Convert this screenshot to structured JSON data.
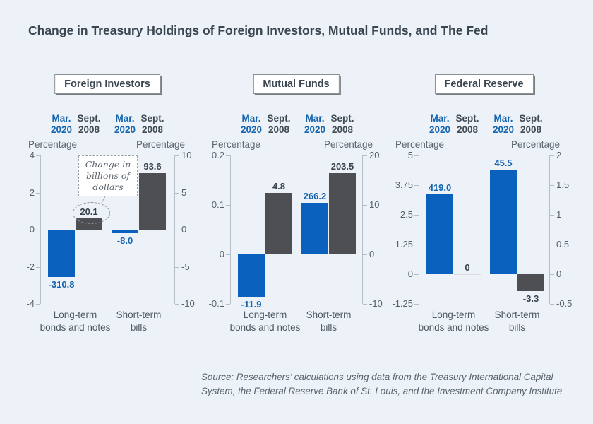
{
  "title": "Change in Treasury Holdings of Foreign Investors, Mutual Funds, and The Fed",
  "colors": {
    "background": "#edf2f9",
    "bar_blue": "#0a62be",
    "bar_dark": "#4d4f53",
    "label_blue": "#1464ae",
    "label_dark": "#39434b"
  },
  "source": {
    "line1": "Source: Researchers’ calculations using data from the Treasury International Capital",
    "line2": "System, the Federal Reserve Bank of St. Louis, and the Investment Company Institute"
  },
  "chart_data": [
    {
      "type": "bar",
      "title": "Foreign Investors",
      "categories": [
        [
          "Long-term",
          "bonds and notes"
        ],
        [
          "Short-term",
          "bills"
        ]
      ],
      "series_labels": [
        [
          "Mar.",
          "2020"
        ],
        [
          "Sept.",
          "2008"
        ]
      ],
      "left_axis": {
        "label": "Percentage",
        "min": -4,
        "max": 4,
        "ticks": [
          4,
          2,
          0,
          -2,
          -4
        ]
      },
      "right_axis": {
        "label": "Percentage",
        "min": -10,
        "max": 10,
        "ticks": [
          10,
          5,
          0,
          -5,
          -10
        ]
      },
      "bars": [
        {
          "group": 0,
          "series": 0,
          "axis": "left",
          "value": -2.55,
          "label": "-310.8",
          "pos": "below"
        },
        {
          "group": 0,
          "series": 1,
          "axis": "right",
          "value": 1.5,
          "label": "20.1",
          "pos": "above",
          "circled": true
        },
        {
          "group": 1,
          "series": 0,
          "axis": "left",
          "value": -0.18,
          "label": "-8.0",
          "pos": "below"
        },
        {
          "group": 1,
          "series": 1,
          "axis": "right",
          "value": 7.6,
          "label": "93.6",
          "pos": "above"
        }
      ],
      "annotation": {
        "lines": [
          "Change in",
          "billions of",
          "dollars"
        ]
      },
      "bar_labels_unit": "billions of dollars"
    },
    {
      "type": "bar",
      "title": "Mutual Funds",
      "categories": [
        [
          "Long-term",
          "bonds and notes"
        ],
        [
          "Short-term",
          "bills"
        ]
      ],
      "series_labels": [
        [
          "Mar.",
          "2020"
        ],
        [
          "Sept.",
          "2008"
        ]
      ],
      "left_axis": {
        "label": "Percentage",
        "min": -0.1,
        "max": 0.2,
        "ticks": [
          0.2,
          0.1,
          0,
          -0.1
        ]
      },
      "right_axis": {
        "label": "Percentage",
        "min": -10,
        "max": 20,
        "ticks": [
          20,
          10,
          0,
          -10
        ]
      },
      "bars": [
        {
          "group": 0,
          "series": 0,
          "axis": "left",
          "value": -0.085,
          "label": "-11.9",
          "pos": "below"
        },
        {
          "group": 0,
          "series": 1,
          "axis": "right",
          "value": 12.4,
          "label": "4.8",
          "pos": "above"
        },
        {
          "group": 1,
          "series": 0,
          "axis": "left",
          "value": 0.104,
          "label": "266.2",
          "pos": "above"
        },
        {
          "group": 1,
          "series": 1,
          "axis": "right",
          "value": 16.4,
          "label": "203.5",
          "pos": "above"
        }
      ],
      "bar_labels_unit": "billions of dollars"
    },
    {
      "type": "bar",
      "title": "Federal Reserve",
      "categories": [
        [
          "Long-term",
          "bonds and notes"
        ],
        [
          "Short-term",
          "bills"
        ]
      ],
      "series_labels": [
        [
          "Mar.",
          "2020"
        ],
        [
          "Sept.",
          "2008"
        ]
      ],
      "left_axis": {
        "label": "Percentage",
        "min": -1.25,
        "max": 5,
        "ticks": [
          5,
          3.75,
          2.5,
          1.25,
          0,
          -1.25
        ]
      },
      "right_axis": {
        "label": "Percentage",
        "min": -0.5,
        "max": 2,
        "ticks": [
          2,
          1.5,
          1,
          0.5,
          0,
          -0.5
        ]
      },
      "bars": [
        {
          "group": 0,
          "series": 0,
          "axis": "left",
          "value": 3.35,
          "label": "419.0",
          "pos": "above"
        },
        {
          "group": 0,
          "series": 1,
          "axis": "right",
          "value": 0,
          "label": "0",
          "pos": "above"
        },
        {
          "group": 1,
          "series": 0,
          "axis": "left",
          "value": 4.4,
          "label": "45.5",
          "pos": "above"
        },
        {
          "group": 1,
          "series": 1,
          "axis": "right",
          "value": -0.28,
          "label": "-3.3",
          "pos": "below"
        }
      ],
      "bar_labels_unit": "billions of dollars"
    }
  ]
}
